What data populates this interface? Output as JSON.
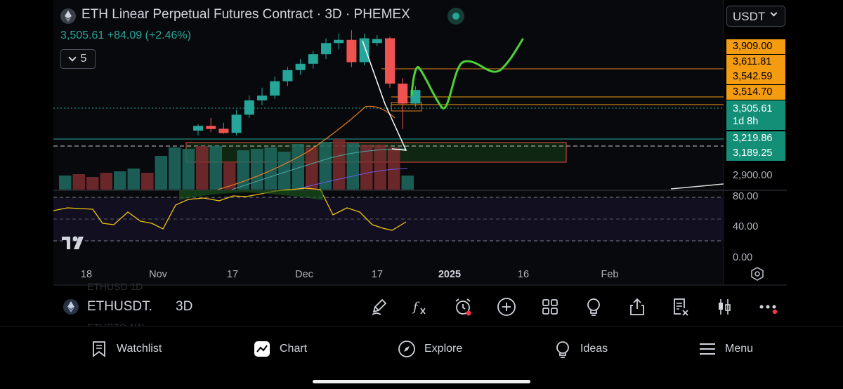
{
  "header": {
    "title": "ETH Linear Perpetual Futures Contract · 3D · PHEMEX",
    "price_line": "3,505.61 +84.09 (+2.46%)",
    "indicator_count": "5",
    "currency": "USDT"
  },
  "price_labels": {
    "orange": [
      "3,909.00",
      "3,611.81",
      "3,542.59",
      "3,514.70"
    ],
    "current_price": "3,505.61",
    "countdown": "1d 8h",
    "teal": [
      "3,219.86",
      "3,189.25"
    ],
    "axis": [
      "2,900.00"
    ]
  },
  "oscillator_axis": [
    "80.00",
    "40.00",
    "0.00"
  ],
  "time_axis": [
    {
      "label": "18",
      "bold": false
    },
    {
      "label": "Nov",
      "bold": false
    },
    {
      "label": "17",
      "bold": false
    },
    {
      "label": "Dec",
      "bold": false
    },
    {
      "label": "17",
      "bold": false
    },
    {
      "label": "2025",
      "bold": true
    },
    {
      "label": "16",
      "bold": false
    },
    {
      "label": "Feb",
      "bold": false
    }
  ],
  "symbol_bar": {
    "symbol": "ETHUSDT.",
    "timeframe": "3D",
    "ghost_above": "ETHUSD          1D",
    "ghost_below": "ETHBTC          1W"
  },
  "toolbar_icons": [
    "pencil-icon",
    "function-icon",
    "alert-icon",
    "add-icon",
    "grid-icon",
    "bulb-icon",
    "share-icon",
    "clear-icon",
    "candles-icon",
    "more-icon"
  ],
  "bottom_nav": [
    {
      "label": "Watchlist",
      "icon": "watchlist-icon"
    },
    {
      "label": "Chart",
      "icon": "chart-icon"
    },
    {
      "label": "Explore",
      "icon": "compass-icon"
    },
    {
      "label": "Ideas",
      "icon": "bulb-icon"
    },
    {
      "label": "Menu",
      "icon": "menu-icon"
    }
  ],
  "colors": {
    "up": "#26a69a",
    "down": "#ef5350",
    "orange": "#f39c12",
    "drawing": "#4cd137"
  },
  "chart_data": {
    "type": "candlestick",
    "ylim": [
      2880,
      3960
    ],
    "candles": [
      {
        "o": 3250,
        "h": 3290,
        "l": 3220,
        "c": 3280
      },
      {
        "o": 3280,
        "h": 3330,
        "l": 3240,
        "c": 3260
      },
      {
        "o": 3262,
        "h": 3300,
        "l": 3230,
        "c": 3235
      },
      {
        "o": 3236,
        "h": 3380,
        "l": 3220,
        "c": 3350
      },
      {
        "o": 3350,
        "h": 3470,
        "l": 3330,
        "c": 3440
      },
      {
        "o": 3440,
        "h": 3520,
        "l": 3410,
        "c": 3470
      },
      {
        "o": 3470,
        "h": 3590,
        "l": 3450,
        "c": 3560
      },
      {
        "o": 3560,
        "h": 3650,
        "l": 3530,
        "c": 3630
      },
      {
        "o": 3630,
        "h": 3700,
        "l": 3600,
        "c": 3670
      },
      {
        "o": 3670,
        "h": 3750,
        "l": 3640,
        "c": 3730
      },
      {
        "o": 3730,
        "h": 3830,
        "l": 3700,
        "c": 3800
      },
      {
        "o": 3800,
        "h": 3860,
        "l": 3760,
        "c": 3820
      },
      {
        "o": 3820,
        "h": 3880,
        "l": 3650,
        "c": 3680
      },
      {
        "o": 3680,
        "h": 3860,
        "l": 3660,
        "c": 3830
      },
      {
        "o": 3800,
        "h": 3850,
        "l": 3780,
        "c": 3825
      },
      {
        "o": 3830,
        "h": 3840,
        "l": 3520,
        "c": 3545
      },
      {
        "o": 3545,
        "h": 3580,
        "l": 3260,
        "c": 3420
      },
      {
        "o": 3420,
        "h": 3530,
        "l": 3400,
        "c": 3505
      }
    ],
    "oscillator": {
      "name": "",
      "ylim": [
        0,
        100
      ],
      "levels": [
        80,
        50,
        20
      ],
      "values": [
        58,
        62,
        55,
        63,
        66,
        68,
        64,
        60,
        62,
        65,
        67,
        70,
        72,
        60,
        58,
        36,
        34,
        38
      ]
    }
  }
}
